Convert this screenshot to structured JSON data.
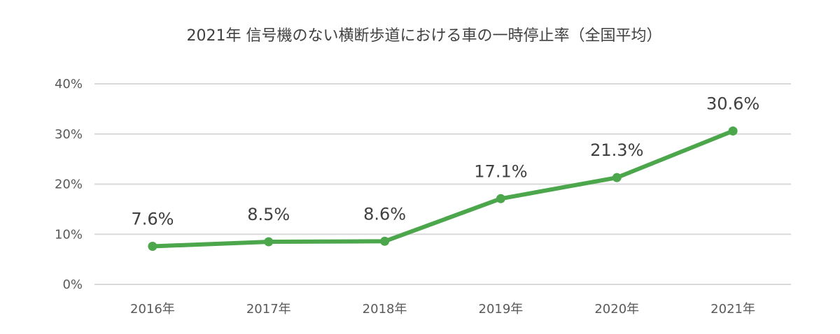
{
  "chart_data": {
    "type": "line",
    "title": "2021年 信号機のない横断歩道における車の一時停止率（全国平均）",
    "categories": [
      "2016年",
      "2017年",
      "2018年",
      "2019年",
      "2020年",
      "2021年"
    ],
    "series": [
      {
        "values": [
          7.6,
          8.5,
          8.6,
          17.1,
          21.3,
          30.6
        ],
        "labels": [
          "7.6%",
          "8.5%",
          "8.6%",
          "17.1%",
          "21.3%",
          "30.6%"
        ],
        "color": "#4ca64c"
      }
    ],
    "y_ticks": [
      0,
      10,
      20,
      30,
      40
    ],
    "y_tick_labels": [
      "0%",
      "10%",
      "20%",
      "30%",
      "40%"
    ],
    "ylim": [
      0,
      40
    ],
    "grid": true,
    "legend": "none"
  }
}
